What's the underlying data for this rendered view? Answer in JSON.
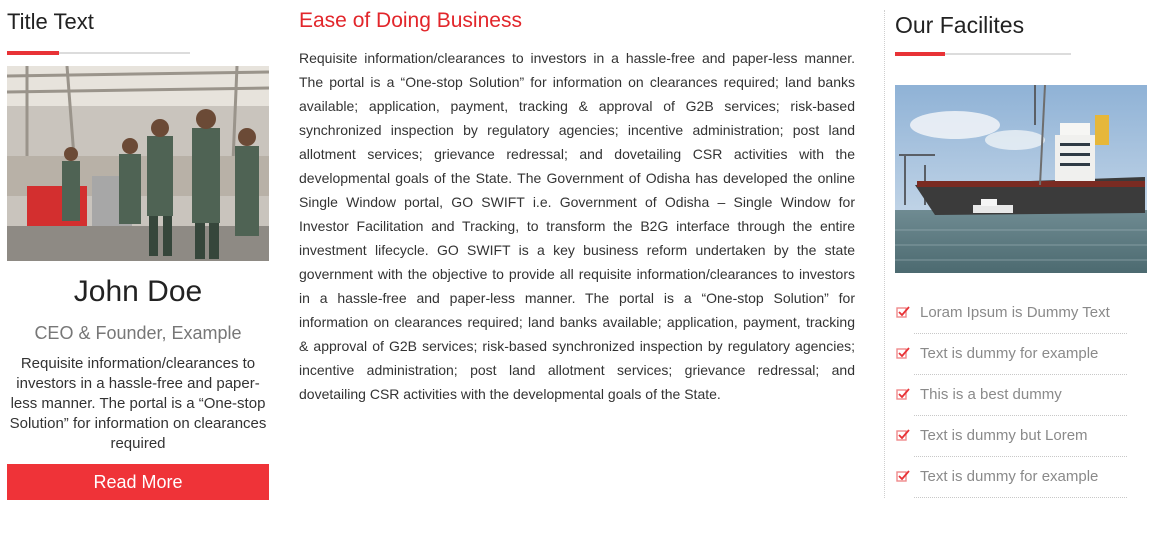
{
  "left": {
    "title": "Title Text",
    "person": {
      "name": "John Doe",
      "role": "CEO & Founder, Example",
      "description": "Requisite information/clearances to investors in a hassle-free and paper-less manner. The portal is a “One-stop Solution” for information on clearances required"
    },
    "read_more_label": "Read More"
  },
  "middle": {
    "title": "Ease of Doing Business",
    "body": "Requisite information/clearances to investors in a hassle-free and paper-less manner. The portal is a “One-stop Solution” for information on clearances required; land banks available; application, payment, tracking & approval of G2B services; risk-based synchronized inspection by regulatory agencies; incentive administration; post land allotment services; grievance redressal; and dovetailing CSR activities with the developmental goals of the State. The Government of Odisha has developed the online Single Window portal, GO SWIFT i.e. Government of Odisha – Single Window for Investor Facilitation and Tracking, to transform the B2G interface through the entire investment lifecycle. GO SWIFT is a key business reform undertaken by the state government with the objective to provide all requisite information/clearances to investors in a hassle-free and paper-less manner. The portal is a “One-stop Solution” for information on clearances required; land banks available; application, payment, tracking & approval of G2B services; risk-based synchronized inspection by regulatory agencies; incentive administration; post land allotment services; grievance redressal; and dovetailing CSR activities with the developmental goals of the State."
  },
  "right": {
    "title": "Our Facilites",
    "items": [
      {
        "label": "Loram Ipsum is Dummy Text",
        "icon": "check-square-icon"
      },
      {
        "label": "Text is dummy for example",
        "icon": "check-square-icon"
      },
      {
        "label": "This is a best dummy",
        "icon": "check-square-icon"
      },
      {
        "label": "Text is dummy but Lorem",
        "icon": "check-square-icon"
      },
      {
        "label": "Text is dummy for example",
        "icon": "check-square-icon"
      }
    ]
  },
  "colors": {
    "accent": "#e83236",
    "button": "#ef3338",
    "heading_red": "#e2262b"
  }
}
